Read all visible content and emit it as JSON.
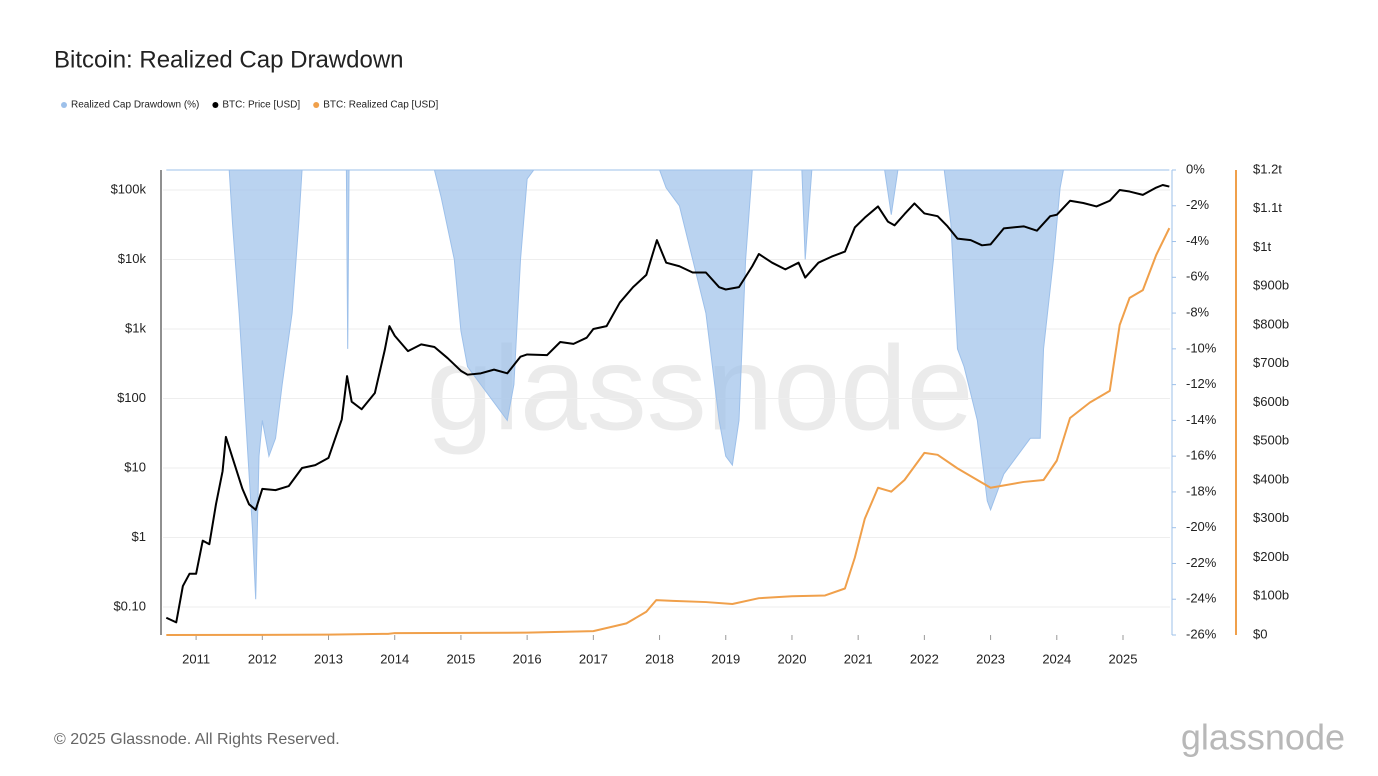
{
  "chart_data": {
    "type": "line",
    "title": "Bitcoin: Realized Cap Drawdown",
    "watermark": "glassnode",
    "xlim": [
      2010.5,
      2025.71
    ],
    "xticks": [
      2011,
      2012,
      2013,
      2014,
      2015,
      2016,
      2017,
      2018,
      2019,
      2020,
      2021,
      2022,
      2023,
      2024,
      2025
    ],
    "ylim": [
      0.0395,
      194000
    ],
    "log_scale": true,
    "grid": true,
    "yticks": [
      {
        "value": 0.1,
        "label": "$0.10"
      },
      {
        "value": 1,
        "label": "$1"
      },
      {
        "value": 10,
        "label": "$10"
      },
      {
        "value": 100,
        "label": "$100"
      },
      {
        "value": 1000,
        "label": "$1k"
      },
      {
        "value": 10000,
        "label": "$10k"
      },
      {
        "value": 100000,
        "label": "$100k"
      }
    ],
    "y2lim": [
      -26,
      0
    ],
    "y2ticks": [
      {
        "value": 0,
        "label": "0%"
      },
      {
        "value": -2,
        "label": "-2%"
      },
      {
        "value": -4,
        "label": "-4%"
      },
      {
        "value": -6,
        "label": "-6%"
      },
      {
        "value": -8,
        "label": "-8%"
      },
      {
        "value": -10,
        "label": "-10%"
      },
      {
        "value": -12,
        "label": "-12%"
      },
      {
        "value": -14,
        "label": "-14%"
      },
      {
        "value": -16,
        "label": "-16%"
      },
      {
        "value": -18,
        "label": "-18%"
      },
      {
        "value": -20,
        "label": "-20%"
      },
      {
        "value": -22,
        "label": "-22%"
      },
      {
        "value": -24,
        "label": "-24%"
      },
      {
        "value": -26,
        "label": "-26%"
      }
    ],
    "y3lim": [
      0,
      1200000000000.0
    ],
    "y3ticks": [
      {
        "value": 0,
        "label": "$0"
      },
      {
        "value": 100000000000.0,
        "label": "$100b"
      },
      {
        "value": 200000000000.0,
        "label": "$200b"
      },
      {
        "value": 300000000000.0,
        "label": "$300b"
      },
      {
        "value": 400000000000.0,
        "label": "$400b"
      },
      {
        "value": 500000000000.0,
        "label": "$500b"
      },
      {
        "value": 600000000000.0,
        "label": "$600b"
      },
      {
        "value": 700000000000.0,
        "label": "$700b"
      },
      {
        "value": 800000000000.0,
        "label": "$800b"
      },
      {
        "value": 900000000000.0,
        "label": "$900b"
      },
      {
        "value": 1000000000000.0,
        "label": "$1t"
      },
      {
        "value": 1100000000000.0,
        "label": "$1.1t"
      },
      {
        "value": 1200000000000.0,
        "label": "$1.2t"
      }
    ],
    "series": [
      {
        "name": "Realized Cap Drawdown (%)",
        "type": "area",
        "axis": "y2",
        "color": "#9dc0ea",
        "x": [
          2010.55,
          2011.5,
          2011.55,
          2011.65,
          2011.75,
          2011.85,
          2011.9,
          2011.95,
          2012.0,
          2012.1,
          2012.2,
          2012.3,
          2012.45,
          2012.55,
          2012.6,
          2013.27,
          2013.29,
          2013.31,
          2014.6,
          2014.7,
          2014.9,
          2015.0,
          2015.1,
          2015.3,
          2015.5,
          2015.7,
          2015.8,
          2015.9,
          2016.0,
          2016.1,
          2018.0,
          2018.1,
          2018.3,
          2018.5,
          2018.7,
          2018.9,
          2019.0,
          2019.1,
          2019.2,
          2019.3,
          2019.4,
          2020.15,
          2020.2,
          2020.3,
          2021.4,
          2021.5,
          2021.6,
          2022.3,
          2022.4,
          2022.5,
          2022.6,
          2022.8,
          2022.95,
          2023.0,
          2023.2,
          2023.4,
          2023.6,
          2023.75,
          2023.8,
          2023.95,
          2024.05,
          2024.1,
          2025.7
        ],
        "values": [
          0,
          0,
          -3,
          -8,
          -14,
          -20,
          -24,
          -16,
          -14,
          -16,
          -15,
          -12,
          -8,
          -3,
          0,
          0,
          -10,
          0,
          0,
          -1.5,
          -5,
          -9,
          -11,
          -12,
          -13,
          -14,
          -12,
          -5,
          -0.5,
          0,
          0,
          -1,
          -2,
          -5,
          -8,
          -14,
          -16,
          -16.5,
          -14,
          -5,
          0,
          0,
          -5,
          0,
          0,
          -2.5,
          0,
          0,
          -3,
          -10,
          -11,
          -14,
          -18.5,
          -19,
          -17,
          -16,
          -15,
          -15,
          -10,
          -5,
          -1,
          0,
          0
        ]
      },
      {
        "name": "BTC: Price [USD]",
        "type": "line",
        "color": "#000000",
        "x": [
          2010.55,
          2010.7,
          2010.8,
          2010.9,
          2011.0,
          2011.1,
          2011.2,
          2011.3,
          2011.4,
          2011.45,
          2011.55,
          2011.7,
          2011.8,
          2011.9,
          2012.0,
          2012.2,
          2012.4,
          2012.6,
          2012.8,
          2013.0,
          2013.2,
          2013.28,
          2013.35,
          2013.5,
          2013.7,
          2013.85,
          2013.92,
          2014.0,
          2014.2,
          2014.4,
          2014.6,
          2014.8,
          2015.0,
          2015.1,
          2015.3,
          2015.5,
          2015.7,
          2015.9,
          2016.0,
          2016.3,
          2016.5,
          2016.7,
          2016.9,
          2017.0,
          2017.2,
          2017.4,
          2017.6,
          2017.8,
          2017.96,
          2018.1,
          2018.3,
          2018.5,
          2018.7,
          2018.9,
          2019.0,
          2019.2,
          2019.4,
          2019.5,
          2019.7,
          2019.9,
          2020.1,
          2020.2,
          2020.4,
          2020.6,
          2020.8,
          2020.95,
          2021.1,
          2021.3,
          2021.45,
          2021.55,
          2021.7,
          2021.85,
          2022.0,
          2022.2,
          2022.35,
          2022.5,
          2022.7,
          2022.87,
          2023.0,
          2023.2,
          2023.5,
          2023.7,
          2023.9,
          2024.0,
          2024.2,
          2024.4,
          2024.6,
          2024.8,
          2024.95,
          2025.1,
          2025.3,
          2025.5,
          2025.6,
          2025.7
        ],
        "values": [
          0.07,
          0.06,
          0.2,
          0.3,
          0.3,
          0.9,
          0.8,
          3,
          9,
          28,
          14,
          5,
          3,
          2.5,
          5,
          4.8,
          5.5,
          10,
          11,
          14,
          50,
          210,
          90,
          70,
          120,
          500,
          1100,
          800,
          480,
          600,
          550,
          380,
          250,
          220,
          230,
          260,
          230,
          400,
          430,
          420,
          650,
          610,
          750,
          1000,
          1100,
          2400,
          4000,
          6000,
          19000,
          9000,
          8000,
          6500,
          6500,
          4000,
          3700,
          4000,
          8000,
          12000,
          9000,
          7200,
          9000,
          5500,
          9000,
          11000,
          13000,
          29000,
          40000,
          58000,
          35000,
          31000,
          45000,
          64000,
          46000,
          42000,
          30000,
          20000,
          19000,
          16000,
          16500,
          28000,
          30000,
          26000,
          42000,
          44000,
          70000,
          65000,
          58000,
          70000,
          100000,
          95000,
          85000,
          108000,
          118000,
          112000
        ]
      },
      {
        "name": "BTC: Realized Cap [USD]",
        "type": "line",
        "axis": "y3",
        "color": "#f0a04b",
        "x": [
          2010.55,
          2012.0,
          2013.0,
          2013.9,
          2014.0,
          2016.0,
          2017.0,
          2017.5,
          2017.8,
          2017.95,
          2018.2,
          2018.7,
          2019.1,
          2019.5,
          2020.0,
          2020.5,
          2020.8,
          2020.95,
          2021.1,
          2021.3,
          2021.5,
          2021.7,
          2022.0,
          2022.2,
          2022.5,
          2022.9,
          2023.0,
          2023.5,
          2023.8,
          2024.0,
          2024.2,
          2024.5,
          2024.8,
          2024.95,
          2025.1,
          2025.3,
          2025.5,
          2025.7
        ],
        "values": [
          0,
          200000000.0,
          1000000000.0,
          3000000000.0,
          5000000000.0,
          6000000000.0,
          10000000000.0,
          30000000000.0,
          60000000000.0,
          90000000000.0,
          88000000000.0,
          85000000000.0,
          80000000000.0,
          95000000000.0,
          100000000000.0,
          102000000000.0,
          120000000000.0,
          200000000000.0,
          300000000000.0,
          380000000000.0,
          370000000000.0,
          400000000000.0,
          470000000000.0,
          465000000000.0,
          430000000000.0,
          390000000000.0,
          380000000000.0,
          395000000000.0,
          400000000000.0,
          450000000000.0,
          560000000000.0,
          600000000000.0,
          630000000000.0,
          800000000000.0,
          870000000000.0,
          890000000000.0,
          980000000000.0,
          1050000000000.0
        ]
      }
    ]
  },
  "footer": {
    "copyright": "© 2025 Glassnode. All Rights Reserved.",
    "logo": "glassnode"
  }
}
